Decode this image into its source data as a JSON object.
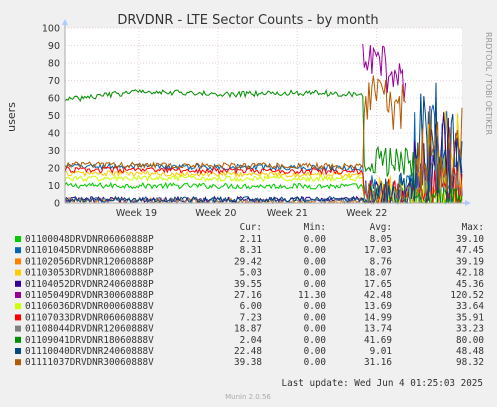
{
  "chart_data": {
    "type": "line",
    "title": "DRVDNR - LTE Sector Counts - by month",
    "ylabel": "users",
    "side_label": "RRDTOOL / TOBI OETIKER",
    "ylim": [
      0,
      100
    ],
    "yticks": [
      0,
      10,
      20,
      30,
      40,
      50,
      60,
      70,
      80,
      90,
      100
    ],
    "xticks": [
      "Week 19",
      "Week 20",
      "Week 21",
      "Week 22"
    ],
    "grid": true,
    "legend_headers": [
      "Cur:",
      "Min:",
      "Avg:",
      "Max:"
    ],
    "series": [
      {
        "name": "01100048DRVDNR06060888P",
        "color": "#00cc00",
        "cur": "2.11",
        "min": "0.00",
        "avg": "8.05",
        "max": "39.10"
      },
      {
        "name": "01101045DRVDNR06060888P",
        "color": "#0066b3",
        "cur": "8.31",
        "min": "0.00",
        "avg": "17.03",
        "max": "47.45"
      },
      {
        "name": "01102056DRVDNR12060888P",
        "color": "#ff8000",
        "cur": "29.42",
        "min": "0.00",
        "avg": "8.76",
        "max": "39.19"
      },
      {
        "name": "01103053DRVDNR18060888P",
        "color": "#ffcc00",
        "cur": "5.03",
        "min": "0.00",
        "avg": "18.07",
        "max": "42.18"
      },
      {
        "name": "01104052DRVDNR24060888P",
        "color": "#330099",
        "cur": "39.55",
        "min": "0.00",
        "avg": "17.65",
        "max": "45.36"
      },
      {
        "name": "01105049DRVDNR30060888P",
        "color": "#990099",
        "cur": "27.16",
        "min": "11.30",
        "avg": "42.48",
        "max": "120.52"
      },
      {
        "name": "01106036DRVDNR00060888V",
        "color": "#ccff00",
        "cur": "6.00",
        "min": "0.00",
        "avg": "13.69",
        "max": "33.64"
      },
      {
        "name": "01107033DRVDNR06060888V",
        "color": "#ff0000",
        "cur": "7.23",
        "min": "0.00",
        "avg": "14.99",
        "max": "35.91"
      },
      {
        "name": "01108044DRVDNR12060888V",
        "color": "#808080",
        "cur": "18.87",
        "min": "0.00",
        "avg": "13.74",
        "max": "33.23"
      },
      {
        "name": "01109041DRVDNR18060888V",
        "color": "#008f00",
        "cur": "2.04",
        "min": "0.00",
        "avg": "41.69",
        "max": "80.00"
      },
      {
        "name": "01110040DRVDNR24060888V",
        "color": "#00487d",
        "cur": "22.48",
        "min": "0.00",
        "avg": "9.01",
        "max": "48.48"
      },
      {
        "name": "01111037DRVDNR30060888V",
        "color": "#b35a00",
        "cur": "39.38",
        "min": "0.00",
        "avg": "31.16",
        "max": "98.32"
      }
    ],
    "shapes": {
      "01100048DRVDNR06060888P": [
        [
          0,
          0.0,
          10
        ],
        [
          0.75,
          0.0,
          9.5
        ],
        [
          0.75,
          0.08,
          2
        ],
        [
          1,
          0.08,
          3
        ]
      ],
      "01101045DRVDNR06060888P": [
        [
          0,
          0.0,
          21
        ],
        [
          0.75,
          0.0,
          20
        ],
        [
          0.75,
          0.12,
          3
        ],
        [
          0.88,
          0.12,
          6
        ],
        [
          0.88,
          0.3,
          25
        ],
        [
          1,
          0.3,
          24
        ]
      ],
      "01102056DRVDNR12060888P": [
        [
          0,
          0.0,
          1.5
        ],
        [
          0.5,
          0.0,
          1
        ],
        [
          0.5,
          0.0,
          0
        ],
        [
          0.72,
          0.0,
          0
        ],
        [
          0.72,
          0.0,
          1
        ],
        [
          0.85,
          0.06,
          3
        ],
        [
          1,
          0.06,
          4
        ]
      ],
      "01103053DRVDNR18060888P": [
        [
          0,
          0.0,
          17
        ],
        [
          0.75,
          0.0,
          16
        ],
        [
          0.75,
          0.12,
          4
        ],
        [
          0.88,
          0.12,
          5
        ],
        [
          0.88,
          0.3,
          21
        ],
        [
          1,
          0.3,
          22
        ]
      ],
      "01104052DRVDNR24060888P": [
        [
          0,
          0.0,
          2
        ],
        [
          0.75,
          0.0,
          2
        ],
        [
          0.75,
          0.1,
          4
        ],
        [
          0.88,
          0.1,
          6
        ],
        [
          0.88,
          0.3,
          25
        ],
        [
          1,
          0.3,
          28
        ]
      ],
      "01105049DRVDNR30060888P": [
        [
          0,
          0.0,
          null
        ],
        [
          0.748,
          0.0,
          null
        ],
        [
          0.748,
          0.1,
          80
        ],
        [
          0.8,
          0.12,
          78
        ],
        [
          0.86,
          0.12,
          70
        ],
        [
          0.88,
          0.0,
          null
        ],
        [
          1,
          0.0,
          null
        ]
      ],
      "01106036DRVDNR00060888V": [
        [
          0,
          0.0,
          14
        ],
        [
          0.75,
          0.0,
          14
        ],
        [
          0.75,
          0.08,
          3
        ],
        [
          0.88,
          0.08,
          4
        ],
        [
          0.88,
          0.08,
          7
        ],
        [
          1,
          0.08,
          6
        ]
      ],
      "01107033DRVDNR06060888V": [
        [
          0,
          0.0,
          19
        ],
        [
          0.75,
          0.0,
          18
        ],
        [
          0.75,
          0.06,
          5
        ],
        [
          0.88,
          0.08,
          6
        ],
        [
          0.88,
          0.12,
          8
        ],
        [
          1,
          0.12,
          7
        ]
      ],
      "01108044DRVDNR12060888V": [
        [
          0,
          0.0,
          1.5
        ],
        [
          0.75,
          0.0,
          1
        ],
        [
          0.75,
          0.08,
          4
        ],
        [
          0.88,
          0.08,
          6
        ],
        [
          0.88,
          0.12,
          10
        ],
        [
          1,
          0.12,
          18
        ]
      ],
      "01109041DRVDNR18060888V": [
        [
          0,
          0.0,
          59
        ],
        [
          0.2,
          0.0,
          64
        ],
        [
          0.4,
          0.0,
          62
        ],
        [
          0.6,
          0.0,
          63
        ],
        [
          0.75,
          0.0,
          62
        ],
        [
          0.75,
          0.07,
          24
        ],
        [
          0.88,
          0.07,
          23
        ],
        [
          0.88,
          0.05,
          2
        ],
        [
          1,
          0.05,
          2
        ]
      ],
      "01110040DRVDNR24060888V": [
        [
          0,
          0.0,
          2
        ],
        [
          0.75,
          0.0,
          2
        ],
        [
          0.75,
          0.1,
          3
        ],
        [
          0.88,
          0.1,
          7
        ],
        [
          0.88,
          0.4,
          30
        ],
        [
          1,
          0.4,
          28
        ]
      ],
      "01111037DRVDNR30060888V": [
        [
          0,
          0.0,
          22
        ],
        [
          0.75,
          0.0,
          21
        ],
        [
          0.75,
          0.12,
          55
        ],
        [
          0.8,
          0.15,
          60
        ],
        [
          0.86,
          0.15,
          55
        ],
        [
          0.88,
          0.0,
          null
        ],
        [
          0.88,
          0.25,
          30
        ],
        [
          1,
          0.25,
          33
        ]
      ]
    },
    "update_text": "Last update: Wed Jun  4 01:25:03 2025",
    "munin_version": "Munin 2.0.56"
  }
}
